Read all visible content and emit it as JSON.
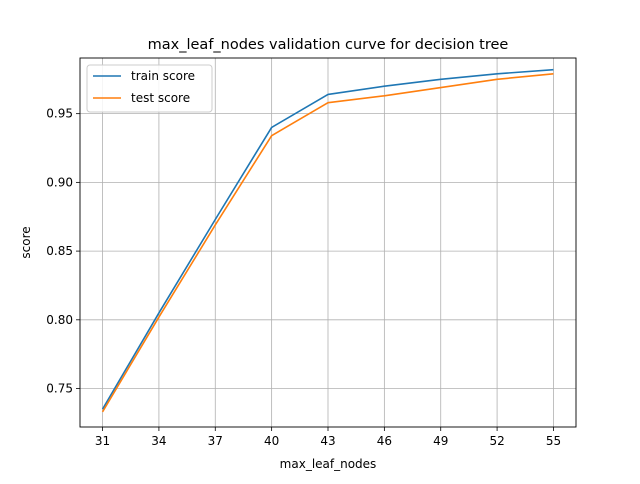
{
  "chart_data": {
    "type": "line",
    "title": "max_leaf_nodes validation curve for decision tree",
    "xlabel": "max_leaf_nodes",
    "ylabel": "score",
    "x": [
      31,
      34,
      37,
      40,
      43,
      46,
      49,
      52,
      55
    ],
    "xticks": [
      "31",
      "34",
      "37",
      "40",
      "43",
      "46",
      "49",
      "52",
      "55"
    ],
    "yticks": [
      "0.75",
      "0.80",
      "0.85",
      "0.90",
      "0.95"
    ],
    "ytick_values": [
      0.75,
      0.8,
      0.85,
      0.9,
      0.95
    ],
    "xlim": [
      29.8,
      56.2
    ],
    "ylim": [
      0.722,
      0.9905
    ],
    "grid": true,
    "legend_position": "top-left",
    "series": [
      {
        "name": "train score",
        "color": "#1f77b4",
        "values": [
          0.735,
          0.805,
          0.873,
          0.94,
          0.964,
          0.97,
          0.975,
          0.979,
          0.982
        ]
      },
      {
        "name": "test score",
        "color": "#ff7f0e",
        "values": [
          0.733,
          0.802,
          0.869,
          0.934,
          0.958,
          0.963,
          0.969,
          0.975,
          0.979
        ]
      }
    ]
  }
}
